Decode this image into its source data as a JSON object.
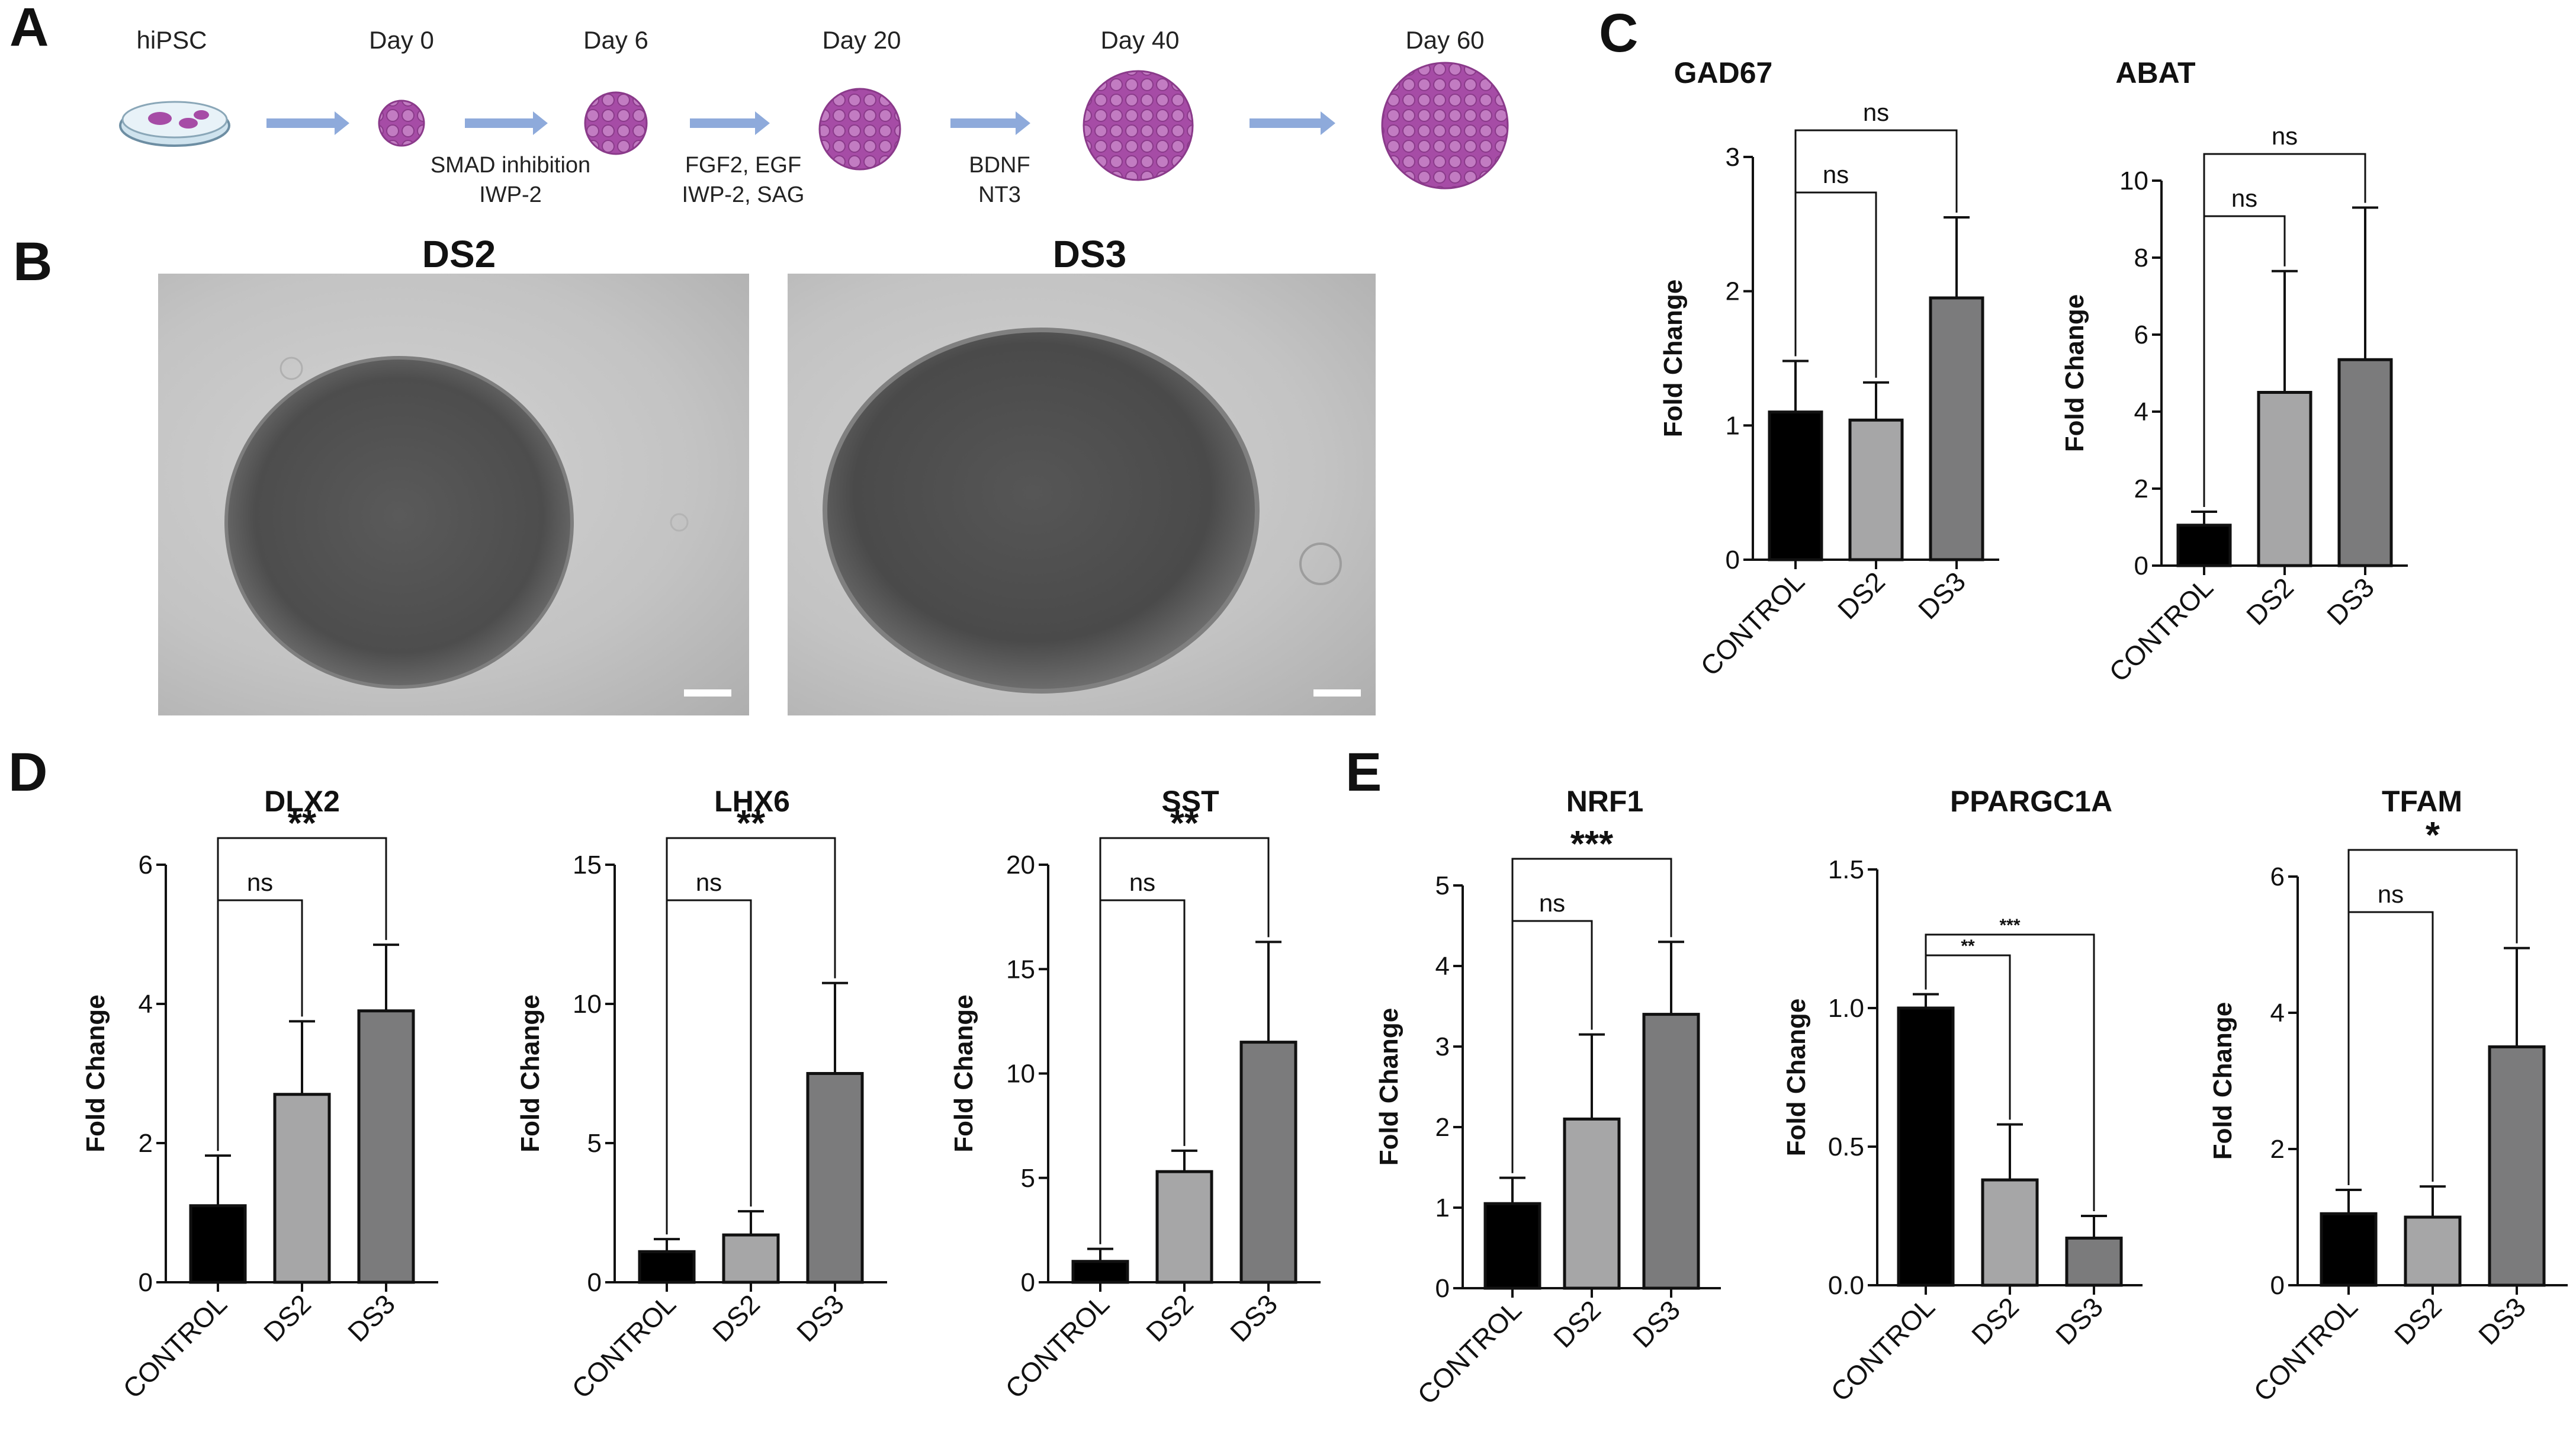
{
  "panels": {
    "A": "A",
    "B": "B",
    "C": "C",
    "D": "D",
    "E": "E"
  },
  "timeline": {
    "stages": [
      "hiPSC",
      "Day 0",
      "Day 6",
      "Day 20",
      "Day 40",
      "Day 60"
    ],
    "treatments": [
      "SMAD inhibition\nIWP-2",
      "FGF2, EGF\nIWP-2, SAG",
      "BDNF\nNT3"
    ]
  },
  "micrographs": {
    "left_title": "DS2",
    "right_title": "DS3"
  },
  "colors": {
    "control": "#000000",
    "ds2": "#a6a6a7",
    "ds3": "#7b7b7c",
    "arrow": "#8eaadb",
    "organoid": "#a64ca6"
  },
  "chart_data": [
    {
      "type": "bar",
      "panel": "C",
      "title": "GAD67",
      "ylabel": "Fold Change",
      "categories": [
        "CONTROL",
        "DS2",
        "DS3"
      ],
      "values": [
        1.1,
        1.04,
        1.95
      ],
      "errors": [
        0.38,
        0.28,
        0.6
      ],
      "ylim": [
        0,
        3
      ],
      "yticks": [
        "0",
        "1",
        "2",
        "3"
      ],
      "significance": [
        {
          "from": 0,
          "to": 1,
          "label": "ns"
        },
        {
          "from": 0,
          "to": 2,
          "label": "ns"
        }
      ]
    },
    {
      "type": "bar",
      "panel": "C",
      "title": "ABAT",
      "ylabel": "Fold Change",
      "categories": [
        "CONTROL",
        "DS2",
        "DS3"
      ],
      "values": [
        1.05,
        4.5,
        5.35
      ],
      "errors": [
        0.35,
        3.15,
        3.95
      ],
      "ylim": [
        0,
        10
      ],
      "yticks": [
        "0",
        "2",
        "4",
        "6",
        "8",
        "10"
      ],
      "significance": [
        {
          "from": 0,
          "to": 1,
          "label": "ns"
        },
        {
          "from": 0,
          "to": 2,
          "label": "ns"
        }
      ]
    },
    {
      "type": "bar",
      "panel": "D",
      "title": "DLX2",
      "ylabel": "Fold Change",
      "categories": [
        "CONTROL",
        "DS2",
        "DS3"
      ],
      "values": [
        1.1,
        2.7,
        3.9
      ],
      "errors": [
        0.72,
        1.05,
        0.95
      ],
      "ylim": [
        0,
        6
      ],
      "yticks": [
        "0",
        "2",
        "4",
        "6"
      ],
      "significance": [
        {
          "from": 0,
          "to": 1,
          "label": "ns"
        },
        {
          "from": 0,
          "to": 2,
          "label": "**"
        }
      ]
    },
    {
      "type": "bar",
      "panel": "D",
      "title": "LHX6",
      "ylabel": "Fold Change",
      "categories": [
        "CONTROL",
        "DS2",
        "DS3"
      ],
      "values": [
        1.1,
        1.7,
        7.5
      ],
      "errors": [
        0.45,
        0.85,
        3.25
      ],
      "ylim": [
        0,
        15
      ],
      "yticks": [
        "0",
        "5",
        "10",
        "15"
      ],
      "significance": [
        {
          "from": 0,
          "to": 1,
          "label": "ns"
        },
        {
          "from": 0,
          "to": 2,
          "label": "**"
        }
      ]
    },
    {
      "type": "bar",
      "panel": "D",
      "title": "SST",
      "ylabel": "Fold Change",
      "categories": [
        "CONTROL",
        "DS2",
        "DS3"
      ],
      "values": [
        1.0,
        5.3,
        11.5
      ],
      "errors": [
        0.6,
        1.0,
        4.8
      ],
      "ylim": [
        0,
        20
      ],
      "yticks": [
        "0",
        "5",
        "10",
        "15",
        "20"
      ],
      "significance": [
        {
          "from": 0,
          "to": 1,
          "label": "ns"
        },
        {
          "from": 0,
          "to": 2,
          "label": "**"
        }
      ]
    },
    {
      "type": "bar",
      "panel": "E",
      "title": "NRF1",
      "ylabel": "Fold Change",
      "categories": [
        "CONTROL",
        "DS2",
        "DS3"
      ],
      "values": [
        1.05,
        2.1,
        3.4
      ],
      "errors": [
        0.32,
        1.05,
        0.9
      ],
      "ylim": [
        0,
        5
      ],
      "yticks": [
        "0",
        "1",
        "2",
        "3",
        "4",
        "5"
      ],
      "significance": [
        {
          "from": 0,
          "to": 1,
          "label": "ns"
        },
        {
          "from": 0,
          "to": 2,
          "label": "***"
        }
      ]
    },
    {
      "type": "bar",
      "panel": "E",
      "title": "PPARGC1A",
      "ylabel": "Fold Change",
      "categories": [
        "CONTROL",
        "DS2",
        "DS3"
      ],
      "values": [
        1.0,
        0.38,
        0.17
      ],
      "errors": [
        0.05,
        0.2,
        0.08
      ],
      "ylim": [
        0,
        1.5
      ],
      "yticks": [
        "0.0",
        "0.5",
        "1.0",
        "1.5"
      ],
      "significance": [
        {
          "from": 0,
          "to": 1,
          "label": "**"
        },
        {
          "from": 0,
          "to": 2,
          "label": "***"
        }
      ]
    },
    {
      "type": "bar",
      "panel": "E",
      "title": "TFAM",
      "ylabel": "Fold Change",
      "categories": [
        "CONTROL",
        "DS2",
        "DS3"
      ],
      "values": [
        1.05,
        1.0,
        3.5
      ],
      "errors": [
        0.35,
        0.45,
        1.45
      ],
      "ylim": [
        0,
        6
      ],
      "yticks": [
        "0",
        "2",
        "4",
        "6"
      ],
      "significance": [
        {
          "from": 0,
          "to": 1,
          "label": "ns"
        },
        {
          "from": 0,
          "to": 2,
          "label": "*"
        }
      ]
    }
  ]
}
